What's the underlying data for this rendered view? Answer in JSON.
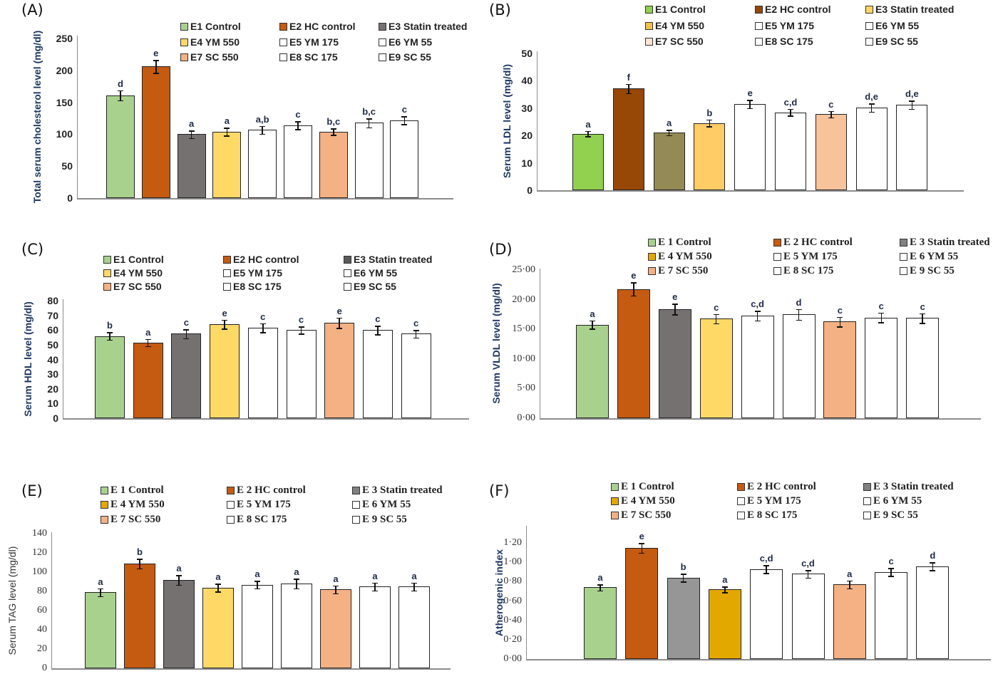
{
  "chart_data": [
    {
      "panel": "(A)",
      "type": "bar",
      "ylabel": "Total serum cholesterol level (mg/dl)",
      "tick_labels": [
        "0",
        "50",
        "100",
        "150",
        "200",
        "250"
      ],
      "ylim": [
        0,
        250
      ],
      "categories": [
        "E1 Control",
        "E2 HC control",
        "E3 Statin treated",
        "E4 YM 550",
        "E5 YM 175",
        "E6 YM 55",
        "E7 SC 550",
        "E8 SC 175",
        "E9 SC 55"
      ],
      "values": [
        161,
        206,
        100,
        104,
        107,
        114,
        104,
        118,
        122
      ],
      "errors": [
        8,
        10,
        6,
        6,
        6,
        6,
        5,
        7,
        6
      ],
      "letters": [
        "d",
        "e",
        "a",
        "a",
        "a,b",
        "c",
        "b,c",
        "b,c",
        "c"
      ],
      "legend": [
        {
          "label": "E1 Control",
          "color": "#a9d18e"
        },
        {
          "label": "E2 HC control",
          "color": "#c55a11"
        },
        {
          "label": "E3 Statin treated",
          "color": "#767171"
        },
        {
          "label": "E4 YM 550",
          "color": "#ffd966"
        },
        {
          "label": "E5 YM 175",
          "color": "#ffffff"
        },
        {
          "label": "E6 YM 55",
          "color": "#ffffff"
        },
        {
          "label": "E7 SC 550",
          "color": "#f4b183"
        },
        {
          "label": "E8 SC 175",
          "color": "#ffffff"
        },
        {
          "label": "E9 SC 55",
          "color": "#ffffff"
        }
      ],
      "bar_colors": [
        "#a9d18e",
        "#c55a11",
        "#767171",
        "#ffd966",
        "#ffffff",
        "#ffffff",
        "#f4b183",
        "#ffffff",
        "#ffffff"
      ]
    },
    {
      "panel": "(B)",
      "type": "bar",
      "ylabel": "Serum LDL level (mg/dl)",
      "tick_labels": [
        "0",
        "10",
        "20",
        "30",
        "40",
        "50"
      ],
      "ylim": [
        0,
        50
      ],
      "categories": [
        "E1 Control",
        "E2 HC control",
        "E3 Statin treated",
        "E4 YM 550",
        "E5 YM 175",
        "E6 YM 55",
        "E7 SC 550",
        "E8 SC 175",
        "E9 SC 55"
      ],
      "values": [
        20.7,
        37.2,
        21.1,
        24.6,
        31.5,
        28.5,
        27.8,
        30.2,
        31.2
      ],
      "errors": [
        1.0,
        1.7,
        1.0,
        1.2,
        1.5,
        1.2,
        1.2,
        1.5,
        1.5
      ],
      "letters": [
        "a",
        "f",
        "a",
        "b",
        "e",
        "c,d",
        "c",
        "d,e",
        "d,e"
      ],
      "legend": [
        {
          "label": "E1 Control",
          "color": "#92d050"
        },
        {
          "label": "E2 HC control",
          "color": "#974706"
        },
        {
          "label": "E3 Statin treated",
          "color": "#ffd966"
        },
        {
          "label": "E4 YM 550",
          "color": "#f2c04a"
        },
        {
          "label": "E5 YM 175",
          "color": "#ffffff"
        },
        {
          "label": "E6 YM 55",
          "color": "#ffffff"
        },
        {
          "label": "E7 SC 550",
          "color": "#fde4d4"
        },
        {
          "label": "E8 SC 175",
          "color": "#ffffff"
        },
        {
          "label": "E9 SC 55",
          "color": "#ffffff"
        }
      ],
      "bar_colors": [
        "#92d050",
        "#974706",
        "#948a54",
        "#ffcc66",
        "#ffffff",
        "#ffffff",
        "#f8c39a",
        "#ffffff",
        "#ffffff"
      ]
    },
    {
      "panel": "(C)",
      "type": "bar",
      "ylabel": "Serum HDL level (mg/dl)",
      "tick_labels": [
        "0",
        "10",
        "20",
        "30",
        "40",
        "50",
        "60",
        "70",
        "80"
      ],
      "ylim": [
        0,
        80
      ],
      "categories": [
        "E1 Control",
        "E2 HC control",
        "E3 Statin treated",
        "E4 YM 550",
        "E5 YM 175",
        "E6 YM 55",
        "E7 SC 550",
        "E8 SC 175",
        "E9 SC 55"
      ],
      "values": [
        56,
        51.5,
        57.5,
        64,
        61.5,
        60,
        65,
        60,
        57.5
      ],
      "errors": [
        2.5,
        2.5,
        3,
        3,
        3,
        2.5,
        3.5,
        3,
        2.5
      ],
      "letters": [
        "b",
        "a",
        "c",
        "e",
        "c",
        "c",
        "e",
        "c",
        "c"
      ],
      "legend": [
        {
          "label": "E1 Control",
          "color": "#a9d18e"
        },
        {
          "label": "E2 HC control",
          "color": "#c55a11"
        },
        {
          "label": "E3 Statin treated",
          "color": "#595959"
        },
        {
          "label": "E4 YM 550",
          "color": "#ffd966"
        },
        {
          "label": "E5 YM 175",
          "color": "#ffffff"
        },
        {
          "label": "E6 YM 55",
          "color": "#ffffff"
        },
        {
          "label": "E7 SC 550",
          "color": "#f4b183"
        },
        {
          "label": "E8 SC 175",
          "color": "#ffffff"
        },
        {
          "label": "E9 SC 55",
          "color": "#ffffff"
        }
      ],
      "bar_colors": [
        "#a9d18e",
        "#c55a11",
        "#767171",
        "#ffd966",
        "#ffffff",
        "#ffffff",
        "#f4b183",
        "#ffffff",
        "#ffffff"
      ]
    },
    {
      "panel": "(D)",
      "type": "bar",
      "ylabel": "Serum VLDL level  (mg/dl)",
      "tick_labels": [
        "0·00",
        "5·00",
        "10·00",
        "15·00",
        "20·00",
        "25·00"
      ],
      "ylim": [
        0,
        25
      ],
      "categories": [
        "E 1 Control",
        "E 2 HC control",
        "E 3 Statin treated",
        "E 4 YM 550",
        "E 5 YM 175",
        "E 6 YM 55",
        "E 7 SC 550",
        "E 8 SC 175",
        "E 9 SC 55"
      ],
      "values": [
        15.8,
        21.8,
        18.4,
        16.8,
        17.3,
        17.5,
        16.3,
        17.0,
        16.9
      ],
      "errors": [
        0.7,
        1.1,
        0.9,
        0.8,
        0.8,
        0.9,
        0.8,
        0.8,
        0.8
      ],
      "letters": [
        "a",
        "e",
        "e",
        "c",
        "c,d",
        "d",
        "c",
        "c",
        "c"
      ],
      "legend": [
        {
          "label": "E 1 Control",
          "color": "#a9d18e"
        },
        {
          "label": "E 2 HC control",
          "color": "#c55a11"
        },
        {
          "label": "E 3 Statin treated",
          "color": "#808080"
        },
        {
          "label": "E 4 YM 550",
          "color": "#e3a800"
        },
        {
          "label": "E 5 YM 175",
          "color": "#ffffff"
        },
        {
          "label": "E 6 YM 55",
          "color": "#ffffff"
        },
        {
          "label": "E 7 SC 550",
          "color": "#f4b183"
        },
        {
          "label": "E 8 SC 175",
          "color": "#ffffff"
        },
        {
          "label": "E 9 SC 55",
          "color": "#ffffff"
        }
      ],
      "bar_colors": [
        "#a9d18e",
        "#c55a11",
        "#767171",
        "#ffd966",
        "#ffffff",
        "#ffffff",
        "#f4b183",
        "#ffffff",
        "#ffffff"
      ]
    },
    {
      "panel": "(E)",
      "type": "bar",
      "ylabel": "Serum TAG level (mg/dl)",
      "tick_labels": [
        "0",
        "20",
        "40",
        "60",
        "80",
        "100",
        "120",
        "140"
      ],
      "ylim": [
        0,
        140
      ],
      "categories": [
        "E 1 Control",
        "E 2 HC control",
        "E 3 Statin treated",
        "E 4 YM 550",
        "E 5 YM 175",
        "E 6 YM 55",
        "E 7 SC 550",
        "E 8 SC 175",
        "E 9 SC 55"
      ],
      "values": [
        79,
        109,
        92,
        84,
        87,
        88,
        82,
        85,
        85
      ],
      "errors": [
        4,
        5,
        5,
        4,
        4,
        5,
        4,
        4,
        4
      ],
      "letters": [
        "a",
        "b",
        "a",
        "a",
        "a",
        "a",
        "a",
        "a",
        "a"
      ],
      "legend": [
        {
          "label": "E 1 Control",
          "color": "#a9d18e"
        },
        {
          "label": "E 2 HC control",
          "color": "#c55a11"
        },
        {
          "label": "E 3 Statin treated",
          "color": "#808080"
        },
        {
          "label": "E 4 YM 550",
          "color": "#e3a800"
        },
        {
          "label": "E 5 YM 175",
          "color": "#ffffff"
        },
        {
          "label": "E 6 YM 55",
          "color": "#ffffff"
        },
        {
          "label": "E 7 SC 550",
          "color": "#f4b183"
        },
        {
          "label": "E 8 SC 175",
          "color": "#ffffff"
        },
        {
          "label": "E 9 SC 55",
          "color": "#ffffff"
        }
      ],
      "bar_colors": [
        "#a9d18e",
        "#c55a11",
        "#767171",
        "#ffd966",
        "#ffffff",
        "#ffffff",
        "#f4b183",
        "#ffffff",
        "#ffffff"
      ]
    },
    {
      "panel": "(F)",
      "type": "bar",
      "ylabel": "Atherogenic index",
      "tick_labels": [
        "0·00",
        "0·20",
        "0·40",
        "0·60",
        "0·80",
        "1·00",
        "1·20"
      ],
      "ylim": [
        0,
        1.4
      ],
      "categories": [
        "E 1 Control",
        "E 2 HC control",
        "E 3 Statin treated",
        "E 4 YM 550",
        "E 5 YM 175",
        "E 6 YM 55",
        "E 7 SC 550",
        "E 8 SC 175",
        "E 9 SC 55"
      ],
      "values": [
        0.74,
        1.15,
        0.84,
        0.72,
        0.93,
        0.88,
        0.77,
        0.9,
        0.96
      ],
      "errors": [
        0.03,
        0.05,
        0.04,
        0.03,
        0.04,
        0.04,
        0.04,
        0.04,
        0.04
      ],
      "letters": [
        "a",
        "e",
        "b",
        "a",
        "c,d",
        "c,d",
        "a",
        "c",
        "d"
      ],
      "legend": [
        {
          "label": "E 1 Control",
          "color": "#a9d18e"
        },
        {
          "label": "E 2 HC control",
          "color": "#c55a11"
        },
        {
          "label": "E 3 Statin treated",
          "color": "#808080"
        },
        {
          "label": "E 4 YM 550",
          "color": "#e3a800"
        },
        {
          "label": "E 5 YM 175",
          "color": "#ffffff"
        },
        {
          "label": "E 6 YM 55",
          "color": "#ffffff"
        },
        {
          "label": "E 7 SC 550",
          "color": "#f4b183"
        },
        {
          "label": "E 8 SC 175",
          "color": "#ffffff"
        },
        {
          "label": "E 9 SC 55",
          "color": "#ffffff"
        }
      ],
      "bar_colors": [
        "#a9d18e",
        "#c55a11",
        "#969696",
        "#e3a800",
        "#ffffff",
        "#ffffff",
        "#f4b183",
        "#ffffff",
        "#ffffff"
      ]
    }
  ]
}
